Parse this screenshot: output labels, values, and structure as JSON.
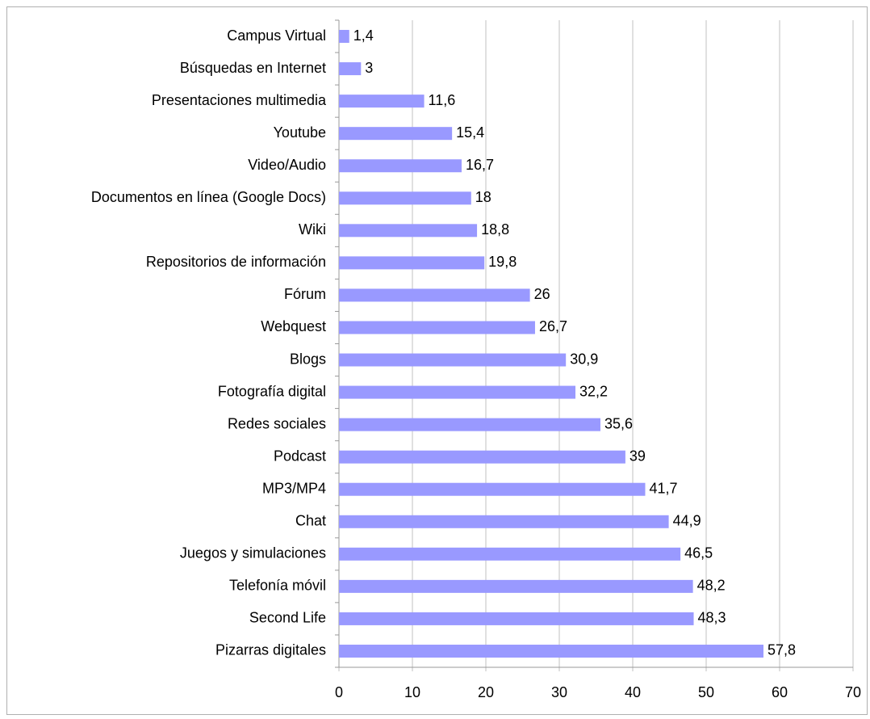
{
  "chart_data": {
    "type": "bar",
    "orientation": "horizontal",
    "categories": [
      "Campus Virtual",
      "Búsquedas en Internet",
      "Presentaciones multimedia",
      "Youtube",
      "Video/Audio",
      "Documentos en línea (Google Docs)",
      "Wiki",
      "Repositorios de información",
      "Fórum",
      "Webquest",
      "Blogs",
      "Fotografía digital",
      "Redes sociales",
      "Podcast",
      "MP3/MP4",
      "Chat",
      "Juegos y simulaciones",
      "Telefonía móvil",
      "Second Life",
      "Pizarras digitales"
    ],
    "values": [
      1.4,
      3,
      11.6,
      15.4,
      16.7,
      18,
      18.8,
      19.8,
      26,
      26.7,
      30.9,
      32.2,
      35.6,
      39,
      41.7,
      44.9,
      46.5,
      48.2,
      48.3,
      57.8
    ],
    "value_labels": [
      "1,4",
      "3",
      "11,6",
      "15,4",
      "16,7",
      "18",
      "18,8",
      "19,8",
      "26",
      "26,7",
      "30,9",
      "32,2",
      "35,6",
      "39",
      "41,7",
      "44,9",
      "46,5",
      "48,2",
      "48,3",
      "57,8"
    ],
    "color": "#9999ff",
    "xlim": [
      0,
      70
    ],
    "xticks": [
      0,
      10,
      20,
      30,
      40,
      50,
      60,
      70
    ],
    "grid": true
  }
}
